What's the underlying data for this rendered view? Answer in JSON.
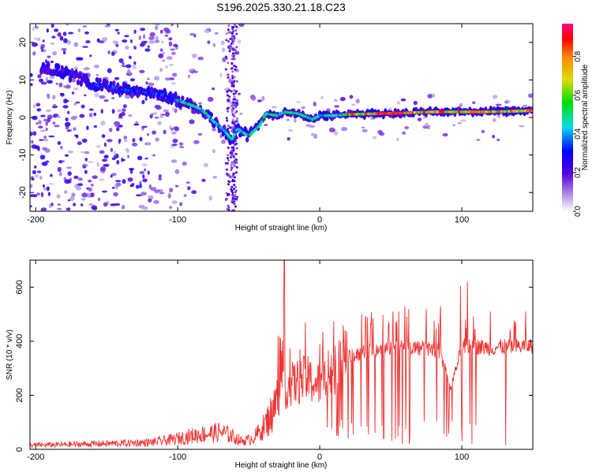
{
  "title": "S196.2025.330.21.18.C23",
  "chart_data": [
    {
      "type": "heatmap",
      "name": "spectrogram",
      "xlabel": "Height of straight line (km)",
      "ylabel": "Frequency (Hz)",
      "xlim": [
        -204,
        150
      ],
      "ylim": [
        -25,
        25
      ],
      "xticks": [
        -200,
        -100,
        0,
        100
      ],
      "yticks": [
        -20,
        -10,
        0,
        10,
        20
      ],
      "ridge": {
        "x": [
          -200,
          -180,
          -160,
          -150,
          -140,
          -130,
          -120,
          -110,
          -100,
          -92,
          -85,
          -80,
          -75,
          -70,
          -66,
          -62,
          -58,
          -54,
          -50,
          -46,
          -42,
          -38,
          -30,
          -25,
          -15,
          -5,
          0,
          10,
          20,
          40,
          60,
          80,
          100,
          120,
          150
        ],
        "y": [
          14,
          12,
          9,
          8.5,
          7.5,
          7,
          6.5,
          6,
          4.5,
          3.5,
          2.5,
          1,
          -1,
          -2.5,
          -4,
          -6,
          -3,
          -4,
          -5,
          -3.5,
          -2,
          1,
          0.5,
          1.5,
          1,
          -0.5,
          0.5,
          0.5,
          0.8,
          1,
          1.2,
          1.5,
          1.5,
          1.5,
          1.8
        ]
      },
      "colorbar": {
        "label": "Normalized spectral amplitude",
        "ticks": [
          0.0,
          0.2,
          0.4,
          0.6,
          0.8
        ],
        "tick_labels": [
          "0.0",
          "0.2",
          "0.4",
          "0.6",
          "0.8"
        ],
        "range": [
          0,
          0.97
        ]
      }
    },
    {
      "type": "line",
      "name": "snr",
      "xlabel": "Height of straight line (km)",
      "ylabel": "SNR (10 * v/v)",
      "xlim": [
        -204,
        150
      ],
      "ylim": [
        0,
        700
      ],
      "xticks": [
        -200,
        -100,
        0,
        100
      ],
      "yticks": [
        0,
        200,
        400,
        600
      ],
      "line_color": "#ee3333",
      "envelope": {
        "x": [
          -204,
          -160,
          -120,
          -105,
          -95,
          -85,
          -75,
          -70,
          -62,
          -55,
          -50,
          -45,
          -40,
          -35,
          -30,
          -25,
          -20,
          -15,
          -10,
          -5,
          0,
          5,
          10,
          15,
          20,
          30,
          40,
          50,
          60,
          70,
          80,
          85,
          88,
          92,
          95,
          100,
          110,
          120,
          130,
          140,
          150
        ],
        "y": [
          15,
          20,
          25,
          35,
          45,
          55,
          60,
          65,
          50,
          30,
          35,
          50,
          80,
          120,
          180,
          220,
          240,
          250,
          260,
          250,
          240,
          270,
          300,
          320,
          340,
          360,
          370,
          380,
          380,
          375,
          370,
          360,
          300,
          220,
          280,
          380,
          380,
          375,
          380,
          380,
          385
        ]
      },
      "spikes": [
        {
          "x": -25,
          "y": 700
        },
        {
          "x": -10,
          "y": 470
        },
        {
          "x": 0,
          "y": 390
        },
        {
          "x": 18,
          "y": 440
        },
        {
          "x": 45,
          "y": 520
        },
        {
          "x": 60,
          "y": 530
        },
        {
          "x": 75,
          "y": 520
        },
        {
          "x": 85,
          "y": 530
        },
        {
          "x": 99,
          "y": 605
        },
        {
          "x": 104,
          "y": 620
        },
        {
          "x": 120,
          "y": 510
        },
        {
          "x": 145,
          "y": 510
        }
      ],
      "dropouts": [
        {
          "x": 12,
          "y": 50
        },
        {
          "x": 20,
          "y": 40
        },
        {
          "x": 45,
          "y": 40
        },
        {
          "x": 58,
          "y": 20
        },
        {
          "x": 63,
          "y": 20
        },
        {
          "x": 100,
          "y": 30
        },
        {
          "x": 107,
          "y": 20
        },
        {
          "x": 131,
          "y": 15
        }
      ]
    }
  ]
}
